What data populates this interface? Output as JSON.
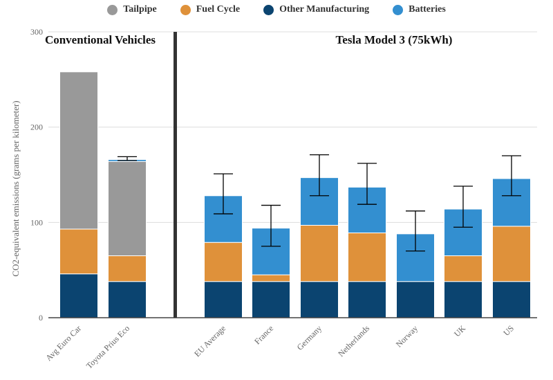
{
  "chart_data": {
    "type": "bar",
    "stacked": true,
    "title": "",
    "ylabel": "CO2-equivalent emissions (grams per kilometer)",
    "xlabel": "",
    "ylim": [
      0,
      300
    ],
    "yticks": [
      0,
      100,
      200,
      300
    ],
    "grid": true,
    "legend_position": "top-center",
    "sections": [
      {
        "label": "Conventional Vehicles",
        "categories": [
          "Avg Euro Car",
          "Toyota Prius Eco"
        ]
      },
      {
        "label": "Tesla Model 3 (75kWh)",
        "categories": [
          "EU Average",
          "France",
          "Germany",
          "Netherlands",
          "Norway",
          "UK",
          "US"
        ]
      }
    ],
    "categories": [
      "Avg Euro Car",
      "Toyota Prius Eco",
      "EU Average",
      "France",
      "Germany",
      "Netherlands",
      "Norway",
      "UK",
      "US"
    ],
    "series": [
      {
        "name": "Other Manufacturing",
        "color": "#0b4470",
        "values": [
          46,
          38,
          38,
          38,
          38,
          38,
          38,
          38,
          38
        ]
      },
      {
        "name": "Fuel Cycle",
        "color": "#df913a",
        "values": [
          47,
          27,
          41,
          7,
          59,
          51,
          0,
          27,
          58
        ]
      },
      {
        "name": "Tailpipe",
        "color": "#999999",
        "values": [
          165,
          99,
          0,
          0,
          0,
          0,
          0,
          0,
          0
        ]
      },
      {
        "name": "Batteries",
        "color": "#338fd0",
        "values": [
          0,
          2,
          49,
          49,
          50,
          48,
          50,
          49,
          50
        ]
      }
    ],
    "legend": [
      {
        "name": "Tailpipe",
        "color": "#999999"
      },
      {
        "name": "Fuel Cycle",
        "color": "#df913a"
      },
      {
        "name": "Other Manufacturing",
        "color": "#0b4470"
      },
      {
        "name": "Batteries",
        "color": "#338fd0"
      }
    ],
    "error_bars": [
      null,
      {
        "low": 165,
        "high": 169
      },
      {
        "low": 109,
        "high": 151
      },
      {
        "low": 75,
        "high": 118
      },
      {
        "low": 128,
        "high": 171
      },
      {
        "low": 119,
        "high": 162
      },
      {
        "low": 70,
        "high": 112
      },
      {
        "low": 95,
        "high": 138
      },
      {
        "low": 128,
        "high": 170
      }
    ]
  }
}
